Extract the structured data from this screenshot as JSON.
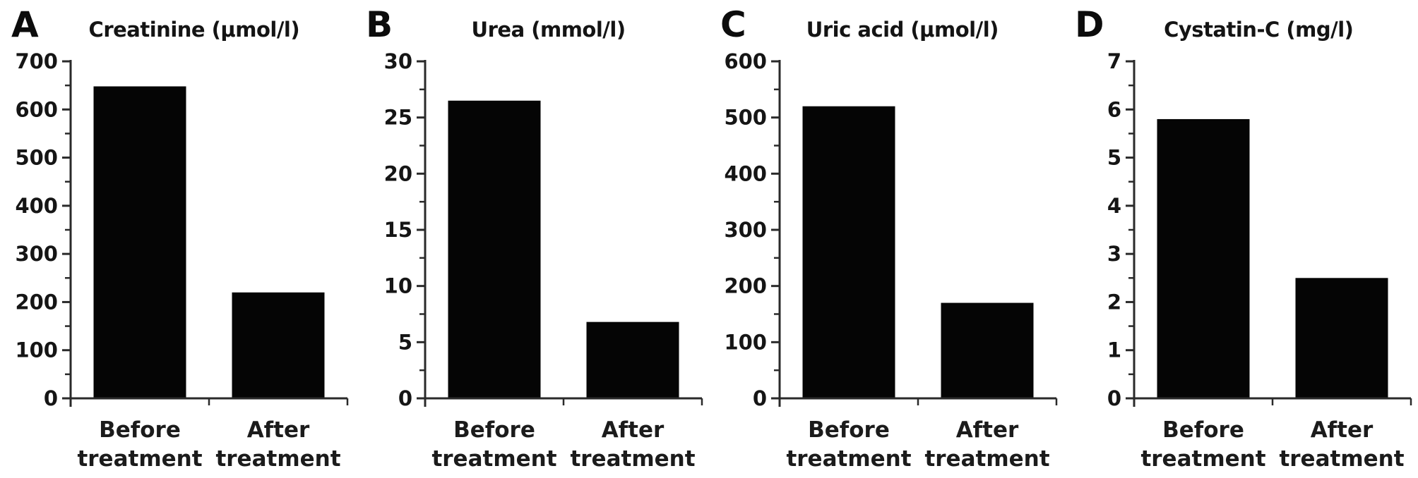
{
  "figure": {
    "background": "#ffffff",
    "text_color": "#151515",
    "axis_color": "#2a2a2a",
    "bar_color": "#050505"
  },
  "chart_data": [
    {
      "panel_letter": "A",
      "type": "bar",
      "title": "Creatinine (μmol/l)",
      "categories": [
        "Before treatment",
        "After treatment"
      ],
      "category_lines": [
        [
          "Before",
          "treatment"
        ],
        [
          "After",
          "treatment"
        ]
      ],
      "values": [
        648,
        220
      ],
      "ylim": [
        0,
        700
      ],
      "ytick_step": 100,
      "yminor_step": 50,
      "ytick_labels": [
        "0",
        "100",
        "200",
        "300",
        "400",
        "500",
        "600",
        "700"
      ],
      "grid": false,
      "legend": "none"
    },
    {
      "panel_letter": "B",
      "type": "bar",
      "title": "Urea (mmol/l)",
      "categories": [
        "Before treatment",
        "After treatment"
      ],
      "category_lines": [
        [
          "Before",
          "treatment"
        ],
        [
          "After",
          "treatment"
        ]
      ],
      "values": [
        26.5,
        6.8
      ],
      "ylim": [
        0,
        30
      ],
      "ytick_step": 5,
      "yminor_step": 2.5,
      "ytick_labels": [
        "0",
        "5",
        "10",
        "15",
        "20",
        "25",
        "30"
      ],
      "grid": false,
      "legend": "none"
    },
    {
      "panel_letter": "C",
      "type": "bar",
      "title": "Uric acid (μmol/l)",
      "categories": [
        "Before treatment",
        "After treatment"
      ],
      "category_lines": [
        [
          "Before",
          "treatment"
        ],
        [
          "After",
          "treatment"
        ]
      ],
      "values": [
        520,
        170
      ],
      "ylim": [
        0,
        600
      ],
      "ytick_step": 100,
      "yminor_step": 50,
      "ytick_labels": [
        "0",
        "100",
        "200",
        "300",
        "400",
        "500",
        "600"
      ],
      "grid": false,
      "legend": "none"
    },
    {
      "panel_letter": "D",
      "type": "bar",
      "title": "Cystatin-C (mg/l)",
      "categories": [
        "Before treatment",
        "After treatment"
      ],
      "category_lines": [
        [
          "Before",
          "treatment"
        ],
        [
          "After",
          "treatment"
        ]
      ],
      "values": [
        5.8,
        2.5
      ],
      "ylim": [
        0,
        7
      ],
      "ytick_step": 1,
      "yminor_step": 0.5,
      "ytick_labels": [
        "0",
        "1",
        "2",
        "3",
        "4",
        "5",
        "6",
        "7"
      ],
      "grid": false,
      "legend": "none"
    }
  ]
}
